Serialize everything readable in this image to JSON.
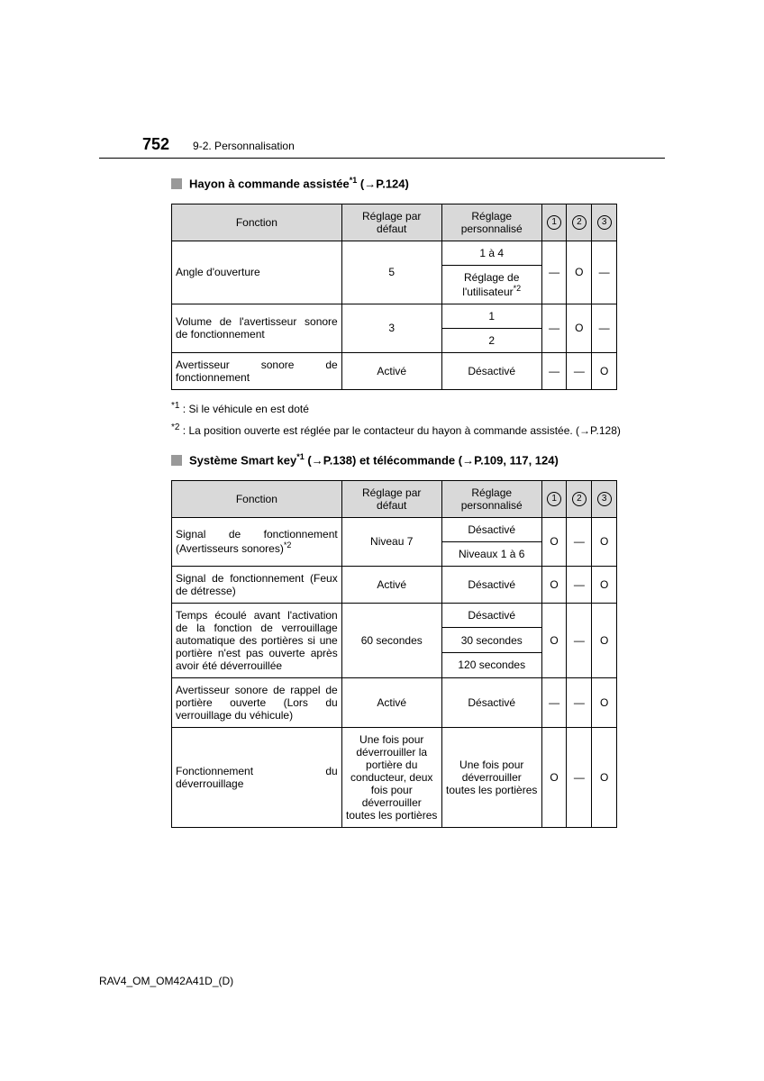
{
  "header": {
    "page_number": "752",
    "section_path": "9-2. Personnalisation"
  },
  "section1": {
    "title_prefix": "Hayon à commande assistée",
    "title_sup": "*1",
    "title_ref": " (→P.124)"
  },
  "table_headers": {
    "fonction": "Fonction",
    "reglage_defaut": "Réglage par défaut",
    "reglage_perso": "Réglage personnalisé",
    "c1": "1",
    "c2": "2",
    "c3": "3"
  },
  "t1": {
    "r1": {
      "fn": "Angle d'ouverture",
      "def": "5",
      "cust1": "1 à 4",
      "cust2_a": "Réglage de l'utilisateur",
      "cust2_sup": "*2",
      "c1": "—",
      "c2": "O",
      "c3": "—"
    },
    "r2": {
      "fn": "Volume de l'avertisseur sonore de fonctionnement",
      "def": "3",
      "cust1": "1",
      "cust2": "2",
      "c1": "—",
      "c2": "O",
      "c3": "—"
    },
    "r3": {
      "fn": "Avertisseur sonore de fonctionnement",
      "def": "Activé",
      "cust": "Désactivé",
      "c1": "—",
      "c2": "—",
      "c3": "O"
    }
  },
  "footnotes1": {
    "fn1_label": "*1",
    "fn1_text": ": Si le véhicule en est doté",
    "fn2_label": "*2",
    "fn2_text": ": La position ouverte est réglée par le contacteur du hayon à commande assistée. (→P.128)"
  },
  "section2": {
    "title_a": "Système Smart key",
    "title_sup": "*1",
    "title_b": " (→P.138) et télécommande (→P.109, 117, 124)"
  },
  "t2": {
    "r1": {
      "fn": "Signal de fonctionnement (Avertisseurs sonores)",
      "fn_sup": "*2",
      "def": "Niveau 7",
      "cust1": "Désactivé",
      "cust2": "Niveaux 1 à 6",
      "c1": "O",
      "c2": "—",
      "c3": "O"
    },
    "r2": {
      "fn": "Signal de fonctionnement (Feux de détresse)",
      "def": "Activé",
      "cust": "Désactivé",
      "c1": "O",
      "c2": "—",
      "c3": "O"
    },
    "r3": {
      "fn": "Temps écoulé avant l'activation de la fonction de verrouillage automatique des portières si une portière n'est pas ouverte après avoir été déverrouillée",
      "def": "60 secondes",
      "cust1": "Désactivé",
      "cust2": "30 secondes",
      "cust3": "120 secondes",
      "c1": "O",
      "c2": "—",
      "c3": "O"
    },
    "r4": {
      "fn": "Avertisseur sonore de rappel de portière ouverte (Lors du verrouillage du véhicule)",
      "def": "Activé",
      "cust": "Désactivé",
      "c1": "—",
      "c2": "—",
      "c3": "O"
    },
    "r5": {
      "fn": "Fonctionnement du déverrouillage",
      "def": "Une fois pour déverrouiller la portière du conducteur, deux fois pour déverrouiller toutes les portières",
      "cust": "Une fois pour déverrouiller toutes les portières",
      "c1": "O",
      "c2": "—",
      "c3": "O"
    }
  },
  "footer": {
    "code": "RAV4_OM_OM42A41D_(D)"
  },
  "colors": {
    "header_bg": "#d9d9d9",
    "square": "#999999"
  }
}
